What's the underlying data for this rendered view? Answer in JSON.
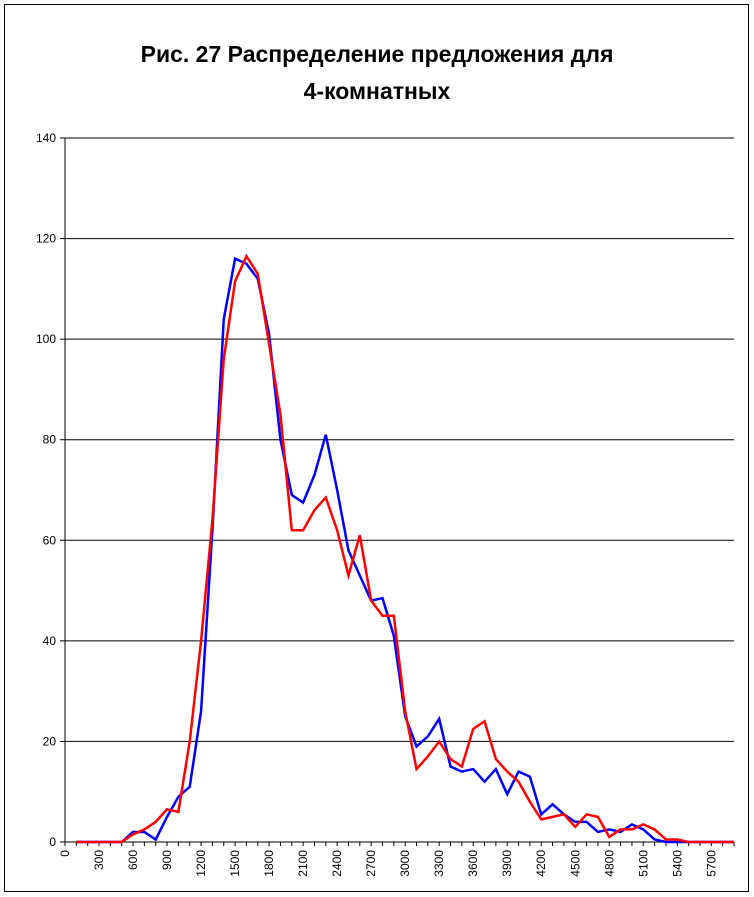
{
  "chart_data": {
    "type": "line",
    "title_lines": [
      "Рис. 27 Распределение предложения для",
      "4-комнатных"
    ],
    "xlabel": "",
    "ylabel": "",
    "x_range": [
      0,
      5900
    ],
    "ylim": [
      0,
      140
    ],
    "y_ticks": [
      0,
      20,
      40,
      60,
      80,
      100,
      120,
      140
    ],
    "x_ticks": [
      0,
      300,
      600,
      900,
      1200,
      1500,
      1800,
      2100,
      2400,
      2700,
      3000,
      3300,
      3600,
      3900,
      4200,
      4500,
      4800,
      5100,
      5400,
      5700
    ],
    "grid": "horizontal",
    "legend": "none",
    "series": [
      {
        "color": "#0000ff",
        "x": [
          100,
          200,
          300,
          400,
          500,
          600,
          700,
          800,
          900,
          1000,
          1100,
          1200,
          1300,
          1400,
          1500,
          1600,
          1700,
          1800,
          1900,
          2000,
          2100,
          2200,
          2300,
          2400,
          2500,
          2600,
          2700,
          2800,
          2900,
          3000,
          3100,
          3200,
          3300,
          3400,
          3500,
          3600,
          3700,
          3800,
          3900,
          4000,
          4100,
          4200,
          4300,
          4400,
          4500,
          4600,
          4700,
          4800,
          4900,
          5000,
          5100,
          5200,
          5300,
          5400,
          5500,
          5600,
          5700,
          5800,
          5900
        ],
        "values": [
          0,
          0,
          0,
          0,
          0,
          2,
          2,
          0.5,
          5,
          9,
          11,
          26,
          62,
          104,
          116,
          115,
          112,
          101,
          80,
          69,
          67.5,
          73,
          81,
          70,
          58,
          53,
          48,
          48.5,
          41,
          25,
          19,
          21,
          24.5,
          15,
          14,
          14.5,
          12,
          14.5,
          9.5,
          14,
          13,
          5.5,
          7.5,
          5.5,
          4,
          4,
          2,
          2.5,
          2,
          3.5,
          2.5,
          0.5,
          0,
          0,
          0,
          0,
          0,
          0,
          0
        ]
      },
      {
        "color": "#ff0000",
        "x": [
          100,
          200,
          300,
          400,
          500,
          600,
          700,
          800,
          900,
          1000,
          1100,
          1200,
          1300,
          1400,
          1500,
          1600,
          1700,
          1800,
          1900,
          2000,
          2100,
          2200,
          2300,
          2400,
          2500,
          2600,
          2700,
          2800,
          2900,
          3000,
          3100,
          3200,
          3300,
          3400,
          3500,
          3600,
          3700,
          3800,
          3900,
          4000,
          4100,
          4200,
          4300,
          4400,
          4500,
          4600,
          4700,
          4800,
          4900,
          5000,
          5100,
          5200,
          5300,
          5400,
          5500,
          5600,
          5700,
          5800,
          5900
        ],
        "values": [
          0,
          0,
          0,
          0,
          0,
          1.5,
          2.5,
          4,
          6.5,
          6,
          20,
          40,
          64,
          96,
          111.5,
          116.5,
          113,
          99,
          85,
          62,
          62,
          66,
          68.5,
          62,
          53,
          61,
          48,
          45,
          45,
          26,
          14.5,
          17,
          20,
          16.5,
          15,
          22.5,
          24,
          16.5,
          14,
          12,
          8,
          4.5,
          5,
          5.5,
          3,
          5.5,
          5,
          1,
          2.5,
          2.5,
          3.5,
          2.5,
          0.5,
          0.5,
          0,
          0,
          0,
          0,
          0
        ]
      }
    ]
  }
}
